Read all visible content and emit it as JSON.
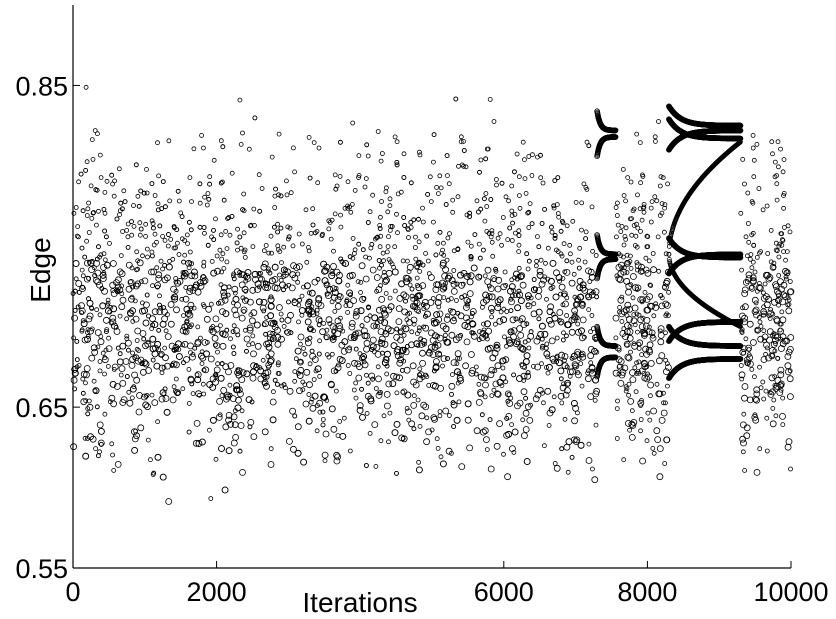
{
  "chart_data": {
    "type": "scatter",
    "title": "",
    "xlabel": "Iterations",
    "ylabel": "Edge",
    "xlim": [
      0,
      10000
    ],
    "ylim": [
      0.55,
      0.9
    ],
    "x_ticks": [
      {
        "value": 0,
        "label": "0"
      },
      {
        "value": 2000,
        "label": "2000"
      },
      {
        "value": 6000,
        "label": "6000"
      },
      {
        "value": 8000,
        "label": "8000"
      },
      {
        "value": 10000,
        "label": "10000"
      }
    ],
    "y_ticks": [
      {
        "value": 0.55,
        "label": "0.55"
      },
      {
        "value": 0.65,
        "label": "0.65"
      },
      {
        "value": 0.85,
        "label": "0.85"
      }
    ],
    "grid": false,
    "legend": "none",
    "marker": "open-circle",
    "marker_color": "#000000",
    "description_note": "Dense chaotic scatter of one point per iteration; points cluster densest between 0.67 and 0.74, spread 0.57-0.86; around x=7400-7600, 8300-9300 the data collapse into a few periodic branches (near 0.68, 0.69, 0.74, 0.82), with a chaotic window near 7600-8300 and after 9400.",
    "series": [
      {
        "name": "",
        "segments": [
          {
            "x_range": [
              0,
              7300
            ],
            "kind": "chaotic",
            "core": [
              0.665,
              0.74
            ],
            "spread": [
              0.57,
              0.86
            ]
          },
          {
            "x_range": [
              7300,
              7560
            ],
            "kind": "periodic",
            "branches": [
              0.681,
              0.688,
              0.742,
              0.745,
              0.818,
              0.822
            ]
          },
          {
            "x_range": [
              7560,
              8300
            ],
            "kind": "chaotic",
            "core": [
              0.665,
              0.74
            ],
            "spread": [
              0.6,
              0.83
            ]
          },
          {
            "x_range": [
              8300,
              9300
            ],
            "kind": "periodic",
            "branches": [
              0.68,
              0.688,
              0.703,
              0.743,
              0.745,
              0.817,
              0.822,
              0.825
            ]
          },
          {
            "x_range": [
              9300,
              10000
            ],
            "kind": "chaotic",
            "core": [
              0.665,
              0.74
            ],
            "spread": [
              0.58,
              0.85
            ]
          }
        ]
      }
    ]
  }
}
